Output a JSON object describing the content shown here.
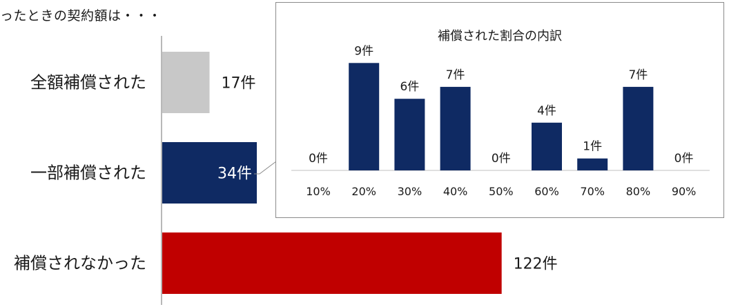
{
  "header": {
    "text": "ったときの契約額は・・・"
  },
  "colors": {
    "full": "#c8c8c8",
    "partial": "#0f2a63",
    "none": "#c00000",
    "inset_bar": "#0f2a63",
    "axis": "#a0a0a0"
  },
  "chart_data": [
    {
      "type": "bar",
      "orientation": "horizontal",
      "title": "",
      "categories": [
        "全額補償された",
        "一部補償された",
        "補償されなかった"
      ],
      "values": [
        17,
        34,
        122
      ],
      "value_labels": [
        "17件",
        "34件",
        "122件"
      ],
      "xlabel": "",
      "ylabel": "",
      "grid": false
    },
    {
      "type": "bar",
      "title": "補償された割合の内訳",
      "categories": [
        "10%",
        "20%",
        "30%",
        "40%",
        "50%",
        "60%",
        "70%",
        "80%",
        "90%"
      ],
      "values": [
        0,
        9,
        6,
        7,
        0,
        4,
        1,
        7,
        0
      ],
      "value_labels": [
        "0件",
        "9件",
        "6件",
        "7件",
        "0件",
        "4件",
        "1件",
        "7件",
        "0件"
      ],
      "xlabel": "",
      "ylabel": "",
      "grid": false
    }
  ]
}
